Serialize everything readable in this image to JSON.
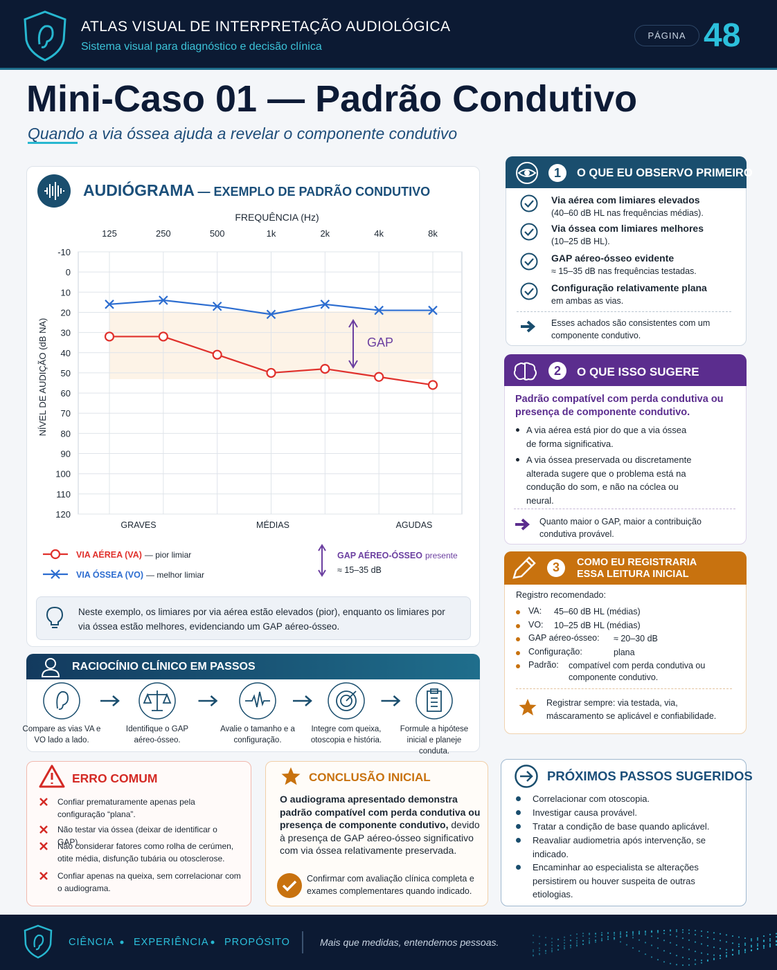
{
  "header": {
    "title": "ATLAS VISUAL DE INTERPRETAÇÃO AUDIOLÓGICA",
    "subtitle": "Sistema visual para diagnóstico e decisão clínica",
    "page_label": "PÁGINA",
    "page_number": "48"
  },
  "case": {
    "title": "Mini-Caso 01 — Padrão Condutivo",
    "subtitle": "Quando a via óssea ajuda a revelar o componente condutivo"
  },
  "chart_data": {
    "type": "line",
    "title": "AUDIÓGRAMA",
    "subtitle": "— EXEMPLO DE PADRÃO CONDUTIVO",
    "x_label": "FREQUÊNCIA (Hz)",
    "y_label": "NÍVEL DE AUDIÇÃO (dB NA)",
    "categories": [
      "125",
      "250",
      "500",
      "1k",
      "2k",
      "4k",
      "8k"
    ],
    "ylim": [
      -10,
      120
    ],
    "y_inverted": true,
    "yticks": [
      -10,
      0,
      10,
      20,
      30,
      40,
      50,
      60,
      70,
      80,
      90,
      100,
      110,
      120
    ],
    "grid": true,
    "regions": [
      "GRAVES",
      "MÉDIAS",
      "AGUDAS"
    ],
    "annotation": "GAP",
    "series": [
      {
        "name": "VIA AÉREA (VA)",
        "legend_note": "— pior limiar",
        "color": "#e0312c",
        "marker": "circle",
        "values": [
          32,
          32,
          41,
          50,
          48,
          52,
          56
        ]
      },
      {
        "name": "VIA ÓSSEA (VO)",
        "legend_note": "— melhor limiar",
        "color": "#2c6dd0",
        "marker": "x",
        "values": [
          16,
          14,
          17,
          21,
          16,
          19,
          19
        ]
      }
    ],
    "gap_legend": {
      "label": "GAP AÉREO-ÓSSEO",
      "note": "presente",
      "range": "≈ 15–35 dB"
    }
  },
  "chart_note": "Neste exemplo, os limiares por via aérea estão elevados (pior), enquanto os limiares por via óssea estão melhores, evidenciando um GAP aéreo-ósseo.",
  "steps": {
    "title": "RACIOCÍNIO CLÍNICO EM PASSOS",
    "items": [
      "Compare as vias VA e VO lado a lado.",
      "Identifique o GAP aéreo-ósseo.",
      "Avalie o tamanho e a configuração.",
      "Integre com queixa, otoscopia e história.",
      "Formule a hipótese inicial e planeje conduta."
    ]
  },
  "observe": {
    "number": "1",
    "title": "O QUE EU OBSERVO PRIMEIRO",
    "items": [
      {
        "title": "Via aérea com limiares elevados",
        "detail": "(40–60 dB HL nas frequências médias)."
      },
      {
        "title": "Via óssea com limiares melhores",
        "detail": "(10–25 dB HL)."
      },
      {
        "title": "GAP aéreo-ósseo evidente",
        "detail": "≈ 15–35 dB nas frequências testadas."
      },
      {
        "title": "Configuração relativamente plana",
        "detail": "em ambas as vias."
      }
    ],
    "conclusion": "Esses achados são consistentes com um componente condutivo."
  },
  "suggest": {
    "number": "2",
    "title": "O QUE ISSO SUGERE",
    "lead": "Padrão compatível com perda condutiva ou presença de componente condutivo.",
    "bullets": [
      "A via aérea está pior do que a via óssea de forma significativa.",
      "A via óssea preservada ou discretamente alterada sugere que o problema está na condução do som, e não na cóclea ou neural."
    ],
    "conclusion": "Quanto maior o GAP, maior a contribuição condutiva provável."
  },
  "register": {
    "number": "3",
    "title": "COMO EU REGISTRARIA ESSA LEITURA INICIAL",
    "intro": "Registro recomendado:",
    "rows": [
      {
        "label": "VA:",
        "value": "45–60 dB HL (médias)"
      },
      {
        "label": "VO:",
        "value": "10–25 dB HL (médias)"
      },
      {
        "label": "GAP aéreo-ósseo:",
        "value": "≈ 20–30 dB"
      },
      {
        "label": "Configuração:",
        "value": "plana"
      },
      {
        "label": "Padrão:",
        "value": "compatível com perda condutiva ou componente condutivo."
      }
    ],
    "note_label": "Registrar sempre:",
    "note": "via testada, via, máscaramento se aplicável e confiabilidade."
  },
  "error": {
    "title": "ERRO COMUM",
    "items": [
      "Confiar prematuramente apenas pela configuração “plana”.",
      "Não testar via óssea (deixar de identificar o GAP).",
      "Não considerar fatores como rolha de cerúmen, otite média, disfunção tubária ou otosclerose.",
      "Confiar apenas na queixa, sem correlacionar com o audiograma."
    ]
  },
  "conclusion": {
    "title": "CONCLUSÃO INICIAL",
    "lead": "O audiograma apresentado demonstra padrão compatível com perda condutiva ou presença de componente condutivo,",
    "text": "devido à presença de GAP aéreo-ósseo significativo com via óssea relativamente preservada.",
    "confirm": "Confirmar com avaliação clínica completa e exames complementares quando indicado."
  },
  "next": {
    "title": "PRÓXIMOS PASSOS SUGERIDOS",
    "items": [
      "Correlacionar com otoscopia.",
      "Investigar causa provável.",
      "Tratar a condição de base quando aplicável.",
      "Reavaliar audiometria após intervenção, se indicado.",
      "Encaminhar ao especialista se alterações persistirem ou houver suspeita de outras etiologias."
    ]
  },
  "footer": {
    "values": [
      "CIÊNCIA",
      "EXPERIÊNCIA",
      "PROPÓSITO"
    ],
    "tagline": "Mais que medidas, entendemos pessoas."
  }
}
